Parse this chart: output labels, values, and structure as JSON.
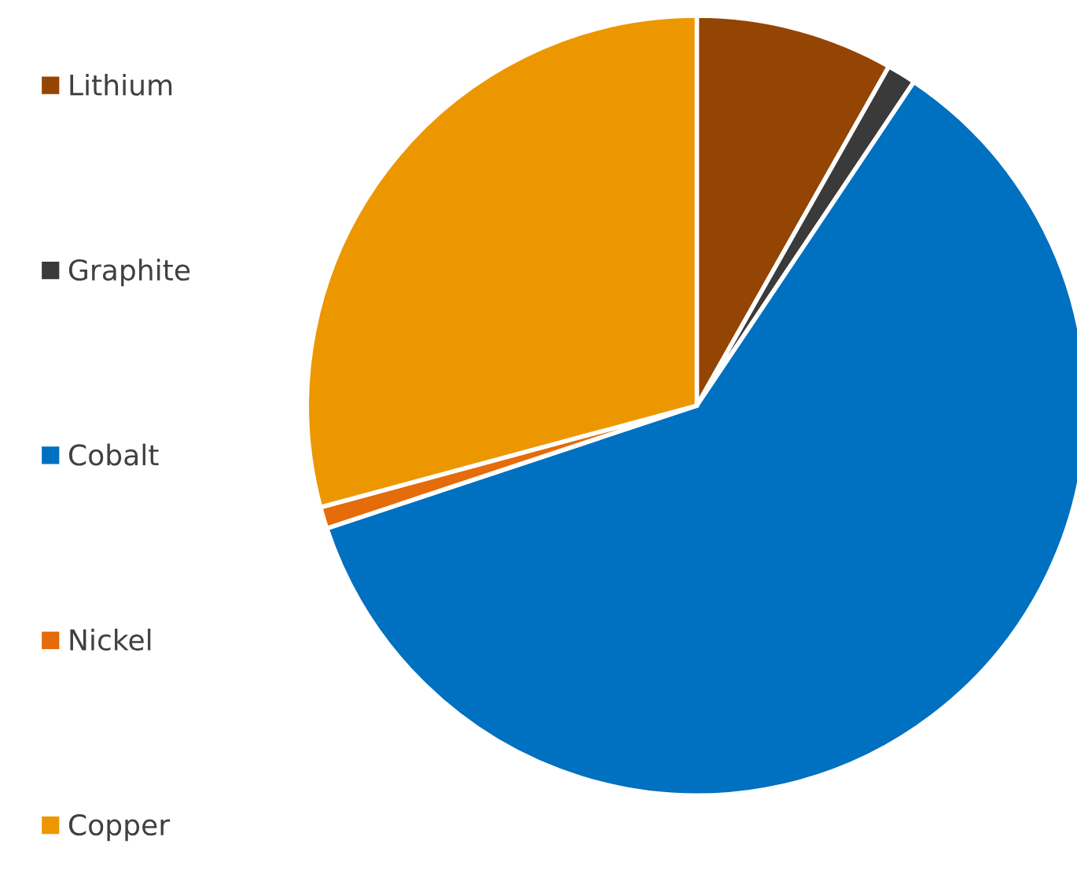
{
  "chart_data": {
    "type": "pie",
    "categories": [
      "Lithium",
      "Graphite",
      "Cobalt",
      "Nickel",
      "Copper"
    ],
    "values": [
      8.2,
      1.2,
      60.5,
      0.9,
      29.2
    ],
    "colors": [
      "#954503",
      "#3a3a3a",
      "#0070c0",
      "#e46c0a",
      "#ec9700"
    ],
    "legend": "left"
  }
}
